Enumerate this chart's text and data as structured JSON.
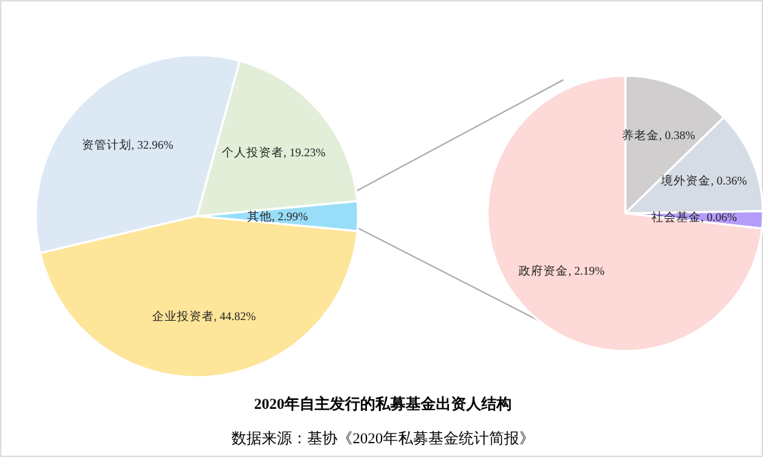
{
  "chart_data": [
    {
      "type": "pie",
      "title": "2020年自主发行的私募基金出资人结构",
      "annotations": [
        "数据来源：基协《2020年私募基金统计简报》"
      ],
      "categories": [
        "其他",
        "个人投资者",
        "资管计划",
        "企业投资者"
      ],
      "values": [
        2.99,
        19.23,
        32.96,
        44.82
      ],
      "colors": [
        "#99def9",
        "#e2eed8",
        "#dde8f5",
        "#fde599"
      ],
      "value_labels": [
        ", 2.99%",
        ", 19.23%",
        ", 32.96%",
        ", 44.82%"
      ],
      "legend": false
    },
    {
      "type": "pie",
      "categories": [
        "养老金",
        "境外资金",
        "社会基金",
        "政府资金"
      ],
      "values": [
        0.38,
        0.36,
        0.06,
        2.19
      ],
      "colors": [
        "#d0cece",
        "#d6dce5",
        "#b49cfa",
        "#fdd9d7"
      ],
      "value_labels": [
        ", 0.38%",
        ", 0.36%",
        ", 0.06%",
        ", 2.19%"
      ],
      "legend": false
    }
  ]
}
